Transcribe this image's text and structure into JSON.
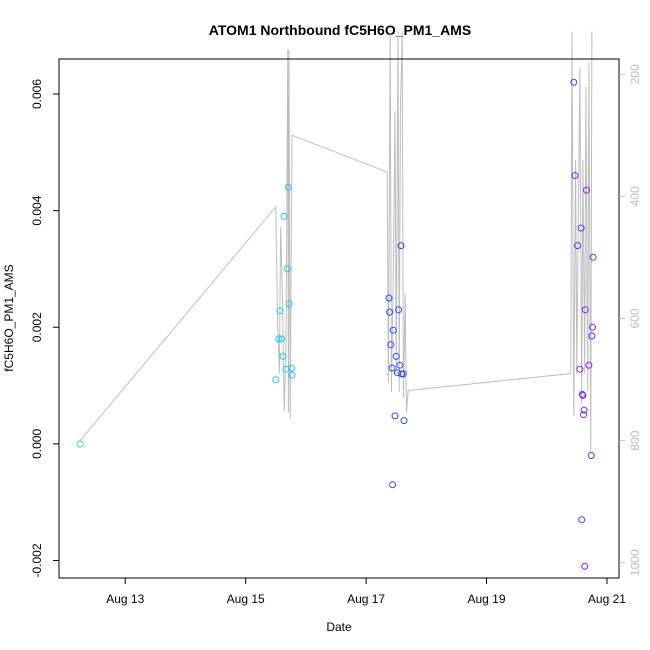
{
  "chart_data": {
    "type": "scatter",
    "title": "ATOM1 Northbound fC5H6O_PM1_AMS",
    "xlabel": "Date",
    "ylabel": "fC5H6O_PM1_AMS",
    "x_ticks": [
      "Aug 13",
      "Aug 15",
      "Aug 17",
      "Aug 19",
      "Aug 21"
    ],
    "x_tick_days": [
      13,
      15,
      17,
      19,
      21
    ],
    "xlim_days": [
      11.9,
      21.2
    ],
    "ylim": [
      -0.0023,
      0.0066
    ],
    "y_ticks": [
      -0.002,
      0.0,
      0.002,
      0.004,
      0.006
    ],
    "y_tick_labels": [
      "-0.002",
      "0.000",
      "0.002",
      "0.004",
      "0.006"
    ],
    "right_axis": {
      "color": "#bdbdbd",
      "ticks": [
        200,
        400,
        600,
        800,
        1000
      ],
      "range": [
        175,
        1025
      ],
      "inverted": true,
      "label": ""
    },
    "grid": false,
    "series": [
      {
        "color": "#3CE0C8",
        "points": [
          [
            12.25,
            0.0
          ]
        ]
      },
      {
        "color": "#1EC8F0",
        "points": [
          [
            15.5,
            0.0011
          ],
          [
            15.55,
            0.0018
          ],
          [
            15.57,
            0.00228
          ],
          [
            15.6,
            0.0018
          ],
          [
            15.62,
            0.0015
          ],
          [
            15.64,
            0.0039
          ],
          [
            15.67,
            0.00128
          ],
          [
            15.69,
            0.003
          ],
          [
            15.71,
            0.0044
          ],
          [
            15.72,
            0.0024
          ],
          [
            15.76,
            0.0013
          ],
          [
            15.77,
            0.00118
          ]
        ]
      },
      {
        "color": "#2850F0",
        "points": [
          [
            17.38,
            0.0025
          ],
          [
            17.39,
            0.00226
          ],
          [
            17.41,
            0.0017
          ],
          [
            17.43,
            0.0013
          ],
          [
            17.44,
            -0.0007
          ],
          [
            17.45,
            0.00195
          ],
          [
            17.48,
            0.00048
          ],
          [
            17.5,
            0.0015
          ],
          [
            17.52,
            0.00122
          ],
          [
            17.54,
            0.0023
          ],
          [
            17.56,
            0.00135
          ],
          [
            17.58,
            0.0034
          ],
          [
            17.59,
            0.0012
          ],
          [
            17.62,
            0.0012
          ],
          [
            17.63,
            0.0004
          ]
        ]
      },
      {
        "color": "#7A28F0",
        "points": [
          [
            20.45,
            0.0062
          ],
          [
            20.47,
            0.0046
          ],
          [
            20.51,
            0.0034
          ],
          [
            20.55,
            0.00128
          ],
          [
            20.57,
            0.0037
          ],
          [
            20.58,
            -0.0013
          ],
          [
            20.59,
            0.00085
          ],
          [
            20.6,
            0.00083
          ],
          [
            20.61,
            0.0005
          ],
          [
            20.62,
            0.00058
          ],
          [
            20.63,
            -0.0021
          ],
          [
            20.64,
            0.0023
          ],
          [
            20.66,
            0.00435
          ],
          [
            20.7,
            0.00135
          ],
          [
            20.74,
            -0.0002
          ],
          [
            20.75,
            0.00185
          ],
          [
            20.76,
            0.002
          ],
          [
            20.77,
            0.0032
          ]
        ]
      }
    ],
    "track": {
      "color": "#bdbdbd",
      "axis": "right",
      "points": [
        [
          12.25,
          800
        ],
        [
          15.5,
          417
        ],
        [
          15.53,
          612
        ],
        [
          15.56,
          690
        ],
        [
          15.58,
          450
        ],
        [
          15.61,
          560
        ],
        [
          15.64,
          752
        ],
        [
          15.67,
          640
        ],
        [
          15.7,
          160
        ],
        [
          15.71,
          754
        ],
        [
          15.72,
          160
        ],
        [
          15.74,
          765
        ],
        [
          15.77,
          300
        ],
        [
          17.35,
          360
        ],
        [
          17.37,
          705
        ],
        [
          17.4,
          130
        ],
        [
          17.42,
          720
        ],
        [
          17.45,
          540
        ],
        [
          17.48,
          260
        ],
        [
          17.5,
          690
        ],
        [
          17.53,
          130
        ],
        [
          17.55,
          720
        ],
        [
          17.57,
          260
        ],
        [
          17.6,
          130
        ],
        [
          17.62,
          730
        ],
        [
          17.65,
          560
        ],
        [
          17.67,
          755
        ],
        [
          17.7,
          718
        ],
        [
          20.4,
          690
        ],
        [
          20.42,
          130
        ],
        [
          20.45,
          760
        ],
        [
          20.48,
          340
        ],
        [
          20.5,
          690
        ],
        [
          20.55,
          190
        ],
        [
          20.58,
          740
        ],
        [
          20.6,
          340
        ],
        [
          20.63,
          690
        ],
        [
          20.65,
          220
        ],
        [
          20.68,
          720
        ],
        [
          20.7,
          180
        ],
        [
          20.73,
          818
        ],
        [
          20.75,
          130
        ]
      ]
    }
  }
}
